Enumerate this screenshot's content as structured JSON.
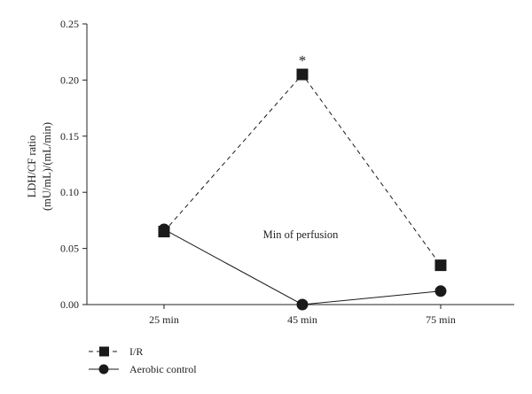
{
  "chart_data": {
    "type": "line",
    "ylabel_lines": [
      "LDH/CF ratio",
      "(mU/mL)/(mL/min)"
    ],
    "categories": [
      "25 min",
      "45 min",
      "75 min"
    ],
    "y_ticks": [
      "0.00",
      "0.05",
      "0.10",
      "0.15",
      "0.20",
      "0.25"
    ],
    "ylim": [
      0,
      0.25
    ],
    "grid": false,
    "legend_position": "bottom-left",
    "annotation": "Min of perfusion",
    "significance_marker": {
      "symbol": "*",
      "series": "I/R",
      "category": "45 min"
    },
    "series": [
      {
        "name": "I/R",
        "values": [
          0.065,
          0.205,
          0.035
        ],
        "marker": "square",
        "line_style": "dashed",
        "color": "#1a1a1a"
      },
      {
        "name": "Aerobic control",
        "values": [
          0.067,
          0.0,
          0.012
        ],
        "marker": "circle",
        "line_style": "solid",
        "color": "#1a1a1a"
      }
    ]
  }
}
